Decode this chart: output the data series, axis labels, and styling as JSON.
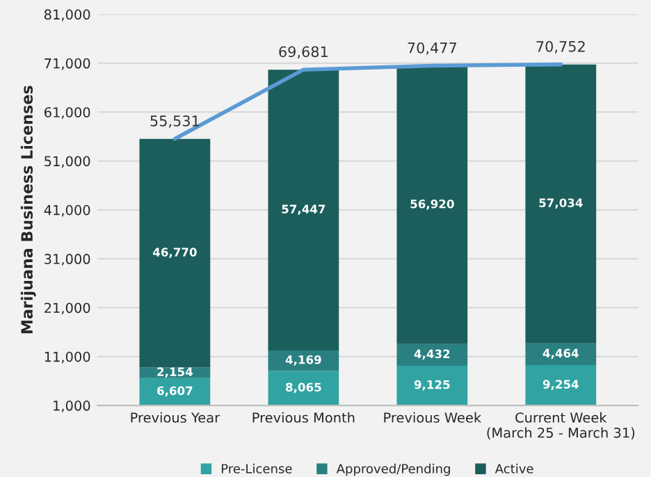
{
  "chart_data": {
    "type": "bar",
    "stacked": true,
    "ylabel": "Marijuana Business Licenses",
    "categories": [
      "Previous Year",
      "Previous Month",
      "Previous Week",
      "Current Week\n(March 25 - March 31)"
    ],
    "series": [
      {
        "name": "Pre-License",
        "color": "#31a3a3",
        "values": [
          6607,
          8065,
          9125,
          9254
        ],
        "value_labels": [
          "6,607",
          "8,065",
          "9,125",
          "9,254"
        ]
      },
      {
        "name": "Approved/Pending",
        "color": "#2a8080",
        "values": [
          2154,
          4169,
          4432,
          4464
        ],
        "value_labels": [
          "2,154",
          "4,169",
          "4,432",
          "4,464"
        ]
      },
      {
        "name": "Active",
        "color": "#1b5e5b",
        "values": [
          46770,
          57447,
          56920,
          57034
        ],
        "value_labels": [
          "46,770",
          "57,447",
          "56,920",
          "57,034"
        ]
      },
      {
        "type": "line",
        "color": "#5b9bd5",
        "values": [
          55531,
          69681,
          70477,
          70752
        ],
        "value_labels": [
          "55,531",
          "69,681",
          "70,477",
          "70,752"
        ]
      }
    ],
    "ylim": [
      1000,
      81000
    ],
    "yticks": [
      {
        "value": 1000,
        "label": "1,000"
      },
      {
        "value": 11000,
        "label": "11,000"
      },
      {
        "value": 21000,
        "label": "21,000"
      },
      {
        "value": 31000,
        "label": "31,000"
      },
      {
        "value": 41000,
        "label": "41,000"
      },
      {
        "value": 51000,
        "label": "51,000"
      },
      {
        "value": 61000,
        "label": "61,000"
      },
      {
        "value": 71000,
        "label": "71,000"
      },
      {
        "value": 81000,
        "label": "81,000"
      }
    ],
    "grid": "y",
    "legend": "bottom"
  }
}
